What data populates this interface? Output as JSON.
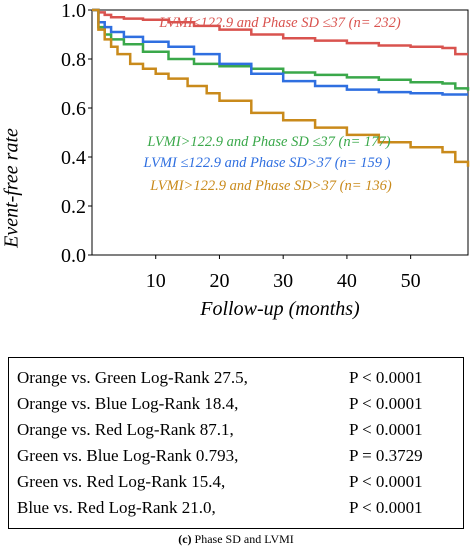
{
  "chart_data": {
    "type": "line",
    "subtype": "kaplan-meier",
    "ylabel": "Event-free rate",
    "xlabel": "Follow-up (months)",
    "xticks": [
      10,
      20,
      30,
      40,
      50
    ],
    "yticks": [
      "1.0",
      "0.8",
      "0.6",
      "0.4",
      "0.2",
      "0.0"
    ],
    "xlim": [
      0,
      59
    ],
    "ylim": [
      0,
      1.0
    ],
    "legend_position": "inline",
    "series": [
      {
        "name": "LVMI≤122.9 and Phase SD ≤37 (n= 232)",
        "color": "#d9534f",
        "x": [
          0,
          1,
          2,
          3,
          5,
          8,
          12,
          16,
          20,
          25,
          30,
          35,
          40,
          45,
          50,
          55,
          57,
          59
        ],
        "y": [
          1.0,
          0.99,
          0.98,
          0.97,
          0.965,
          0.96,
          0.95,
          0.935,
          0.92,
          0.9,
          0.885,
          0.875,
          0.865,
          0.855,
          0.85,
          0.845,
          0.82,
          0.82
        ]
      },
      {
        "name": "LVMI>122.9 and Phase SD ≤37 (n= 177)",
        "color": "#3aa84a",
        "x": [
          0,
          1,
          2,
          3,
          5,
          8,
          12,
          16,
          20,
          25,
          30,
          35,
          40,
          45,
          50,
          55,
          57,
          59
        ],
        "y": [
          1.0,
          0.93,
          0.9,
          0.88,
          0.86,
          0.83,
          0.8,
          0.78,
          0.77,
          0.76,
          0.745,
          0.735,
          0.725,
          0.715,
          0.705,
          0.7,
          0.68,
          0.67
        ]
      },
      {
        "name": "LVMI ≤122.9 and Phase SD>37 (n= 159)",
        "color": "#2f6fe0",
        "x": [
          0,
          1,
          2,
          3,
          5,
          8,
          12,
          16,
          20,
          25,
          30,
          35,
          40,
          45,
          50,
          55,
          59
        ],
        "y": [
          1.0,
          0.95,
          0.93,
          0.91,
          0.89,
          0.87,
          0.85,
          0.82,
          0.78,
          0.74,
          0.71,
          0.69,
          0.675,
          0.665,
          0.66,
          0.655,
          0.655
        ]
      },
      {
        "name": "LVMI>122.9 and Phase SD>37 (n= 136)",
        "color": "#c98a1b",
        "x": [
          0,
          1,
          2,
          3,
          4,
          6,
          8,
          10,
          12,
          15,
          18,
          20,
          25,
          30,
          35,
          40,
          45,
          50,
          55,
          57,
          59
        ],
        "y": [
          1.0,
          0.92,
          0.88,
          0.85,
          0.82,
          0.78,
          0.76,
          0.74,
          0.72,
          0.69,
          0.66,
          0.63,
          0.58,
          0.55,
          0.52,
          0.49,
          0.46,
          0.44,
          0.42,
          0.38,
          0.36
        ]
      }
    ],
    "annotations": [
      {
        "text": "LVMI≤122.9 and Phase SD ≤37 (n= 232)",
        "color": "#d9534f"
      },
      {
        "text": "LVMI>122.9 and Phase SD ≤37 (n= 177)",
        "color": "#3aa84a"
      },
      {
        "text": "LVMI ≤122.9 and Phase SD>37 (n= 159 )",
        "color": "#2f6fe0"
      },
      {
        "text": "LVMI>122.9 and Phase SD>37 (n= 136)",
        "color": "#c98a1b"
      }
    ]
  },
  "stats_table": [
    {
      "comparison": "Orange vs. Green Log-Rank 27.5,",
      "p": "P < 0.0001"
    },
    {
      "comparison": "Orange vs. Blue Log-Rank 18.4,",
      "p": "P < 0.0001"
    },
    {
      "comparison": "Orange vs. Red Log-Rank 87.1,",
      "p": "P < 0.0001"
    },
    {
      "comparison": "Green vs. Blue Log-Rank 0.793,",
      "p": "P = 0.3729"
    },
    {
      "comparison": "Green vs. Red Log-Rank 15.4,",
      "p": "P < 0.0001"
    },
    {
      "comparison": "Blue vs. Red Log-Rank 21.0,",
      "p": "P < 0.0001"
    }
  ],
  "caption": {
    "label": "(c)",
    "text": "Phase SD and LVMI"
  }
}
